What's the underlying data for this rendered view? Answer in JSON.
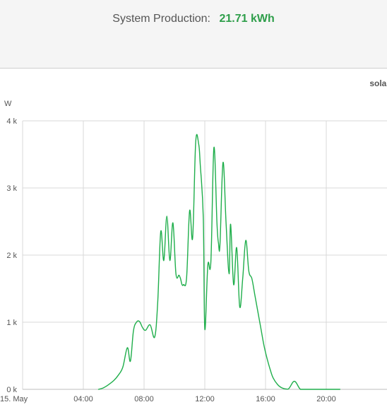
{
  "header": {
    "label": "System Production:",
    "value": "21.71 kWh"
  },
  "colors": {
    "line": "#1fae4b",
    "value_text": "#2e9e4a",
    "grid": "#d8d8d8"
  },
  "legend": {
    "partial_label": "solar"
  },
  "chart_data": {
    "type": "line",
    "title": "",
    "xlabel": "",
    "ylabel": "W",
    "xlim": [
      0,
      24
    ],
    "ylim": [
      0,
      4000
    ],
    "x_ticks": [
      {
        "value": 0,
        "label": "15. May"
      },
      {
        "value": 4,
        "label": "04:00"
      },
      {
        "value": 8,
        "label": "08:00"
      },
      {
        "value": 12,
        "label": "12:00"
      },
      {
        "value": 16,
        "label": "16:00"
      },
      {
        "value": 20,
        "label": "20:00"
      }
    ],
    "y_ticks": [
      {
        "value": 0,
        "label": "0 k"
      },
      {
        "value": 1000,
        "label": "1 k"
      },
      {
        "value": 2000,
        "label": "2 k"
      },
      {
        "value": 3000,
        "label": "3 k"
      },
      {
        "value": 4000,
        "label": "4 k"
      }
    ],
    "grid": true,
    "series": [
      {
        "name": "solar",
        "x": [
          5.0,
          5.3,
          5.6,
          6.0,
          6.3,
          6.6,
          6.9,
          7.1,
          7.3,
          7.5,
          7.7,
          7.9,
          8.1,
          8.4,
          8.7,
          8.9,
          9.1,
          9.3,
          9.5,
          9.7,
          9.9,
          10.1,
          10.3,
          10.4,
          10.5,
          10.6,
          10.8,
          11.0,
          11.2,
          11.4,
          11.6,
          11.7,
          11.9,
          12.0,
          12.2,
          12.4,
          12.6,
          12.8,
          12.9,
          13.0,
          13.2,
          13.4,
          13.6,
          13.7,
          13.9,
          14.1,
          14.3,
          14.5,
          14.7,
          14.9,
          15.1,
          15.3,
          15.5,
          15.7,
          15.9,
          16.1,
          16.3,
          16.5,
          16.8,
          17.1,
          17.5,
          17.9,
          18.3,
          18.7,
          19.1,
          19.5,
          19.7,
          19.9,
          20.1,
          20.3,
          20.6,
          20.9
        ],
        "values": [
          0,
          20,
          60,
          130,
          210,
          330,
          620,
          420,
          870,
          1000,
          1010,
          920,
          880,
          960,
          780,
          1300,
          2350,
          1920,
          2580,
          1920,
          2480,
          1720,
          1700,
          1650,
          1560,
          1560,
          1660,
          2660,
          2260,
          3680,
          3650,
          3350,
          2560,
          900,
          1850,
          1900,
          3600,
          2480,
          2180,
          2160,
          3380,
          2480,
          1720,
          2460,
          1560,
          2110,
          1230,
          1660,
          2220,
          1760,
          1650,
          1400,
          1150,
          900,
          650,
          460,
          300,
          170,
          70,
          20,
          5,
          120,
          0,
          0,
          0,
          0,
          0,
          0,
          0,
          0,
          0,
          0
        ]
      }
    ]
  }
}
